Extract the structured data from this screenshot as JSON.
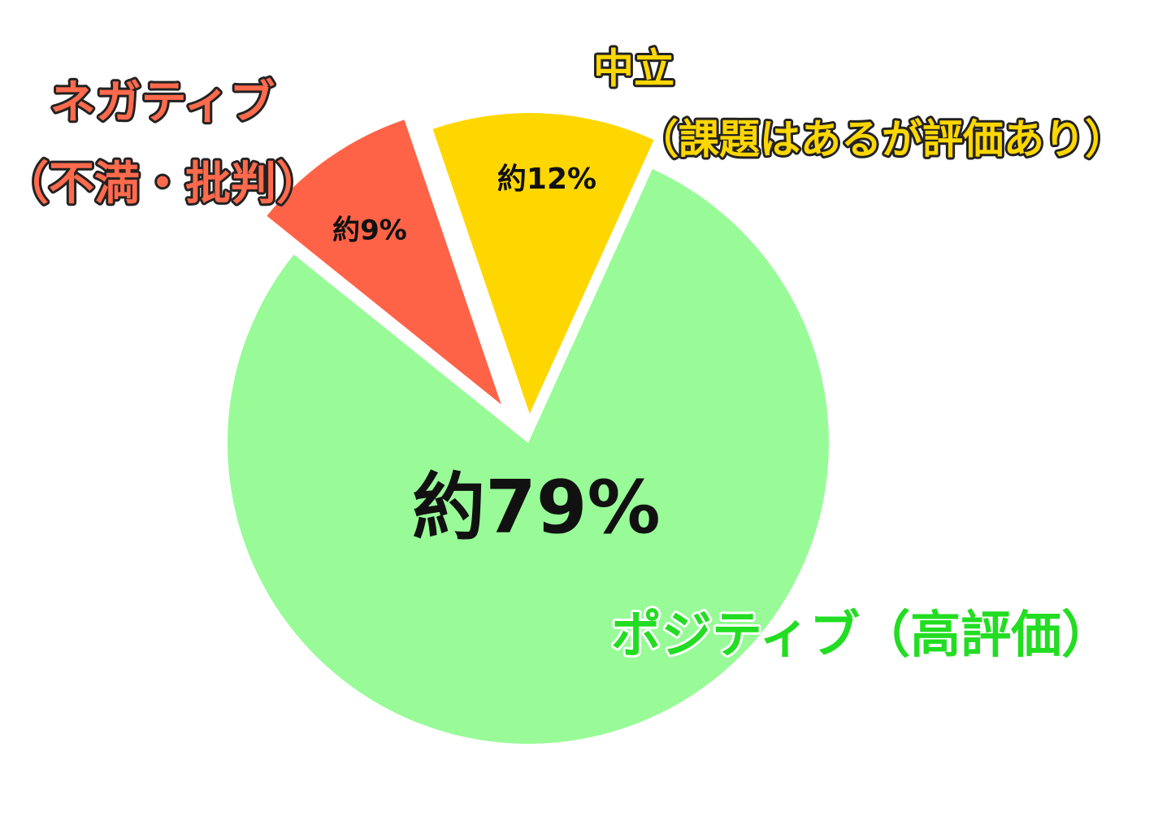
{
  "chart_data": {
    "type": "pie",
    "categories": [
      [
        "ポジティブ（高評価）"
      ],
      [
        "ネガティブ",
        "（不満・批判）"
      ],
      [
        "中立",
        "（課題はあるが評価あり）"
      ]
    ],
    "values": [
      79,
      9,
      12
    ],
    "value_labels": [
      "約79%",
      "約9%",
      "約12%"
    ],
    "colors": [
      "#98fb98",
      "#ff6347",
      "#ffd700"
    ]
  }
}
